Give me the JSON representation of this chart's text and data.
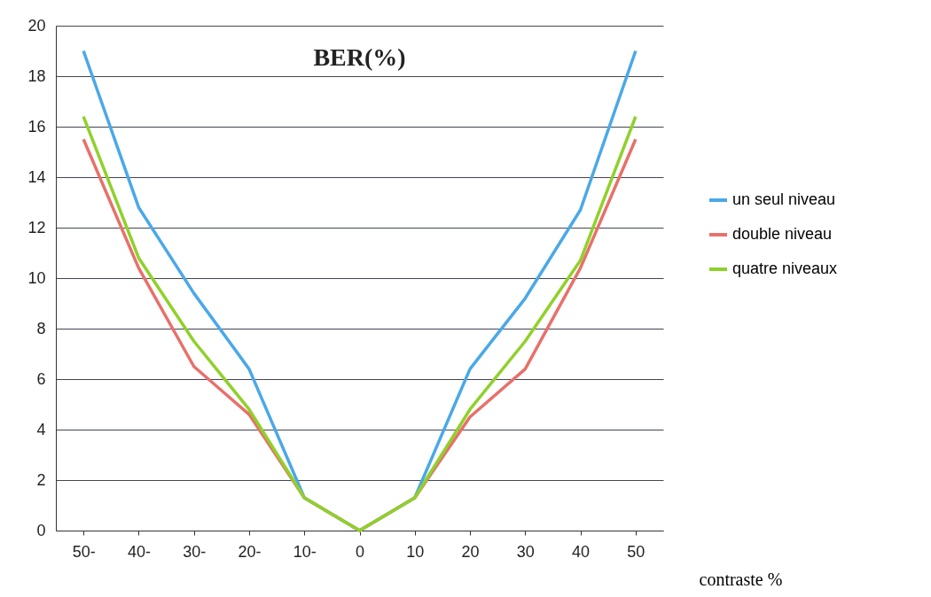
{
  "chart_data": {
    "type": "line",
    "title": "BER(%)",
    "xlabel": "contraste %",
    "categories": [
      "50-",
      "40-",
      "30-",
      "20-",
      "10-",
      "0",
      "10",
      "20",
      "30",
      "40",
      "50"
    ],
    "series": [
      {
        "name": "un seul niveau",
        "color": "#4aa8e8",
        "values": [
          19,
          12.8,
          9.4,
          6.4,
          1.3,
          0,
          1.3,
          6.4,
          9.2,
          12.7,
          19
        ]
      },
      {
        "name": "double niveau",
        "color": "#e8706a",
        "values": [
          15.5,
          10.4,
          6.5,
          4.6,
          1.3,
          0,
          1.3,
          4.5,
          6.4,
          10.4,
          15.5
        ]
      },
      {
        "name": "quatre niveaux",
        "color": "#8fd12a",
        "values": [
          16.4,
          10.8,
          7.5,
          4.8,
          1.3,
          0,
          1.3,
          4.8,
          7.5,
          10.7,
          16.4
        ]
      }
    ],
    "ylim": [
      0,
      20
    ],
    "yticks": [
      0,
      2,
      4,
      6,
      8,
      10,
      12,
      14,
      16,
      18,
      20
    ],
    "grid": "y",
    "legend": "right",
    "marker": "none",
    "line_style": "solid"
  }
}
